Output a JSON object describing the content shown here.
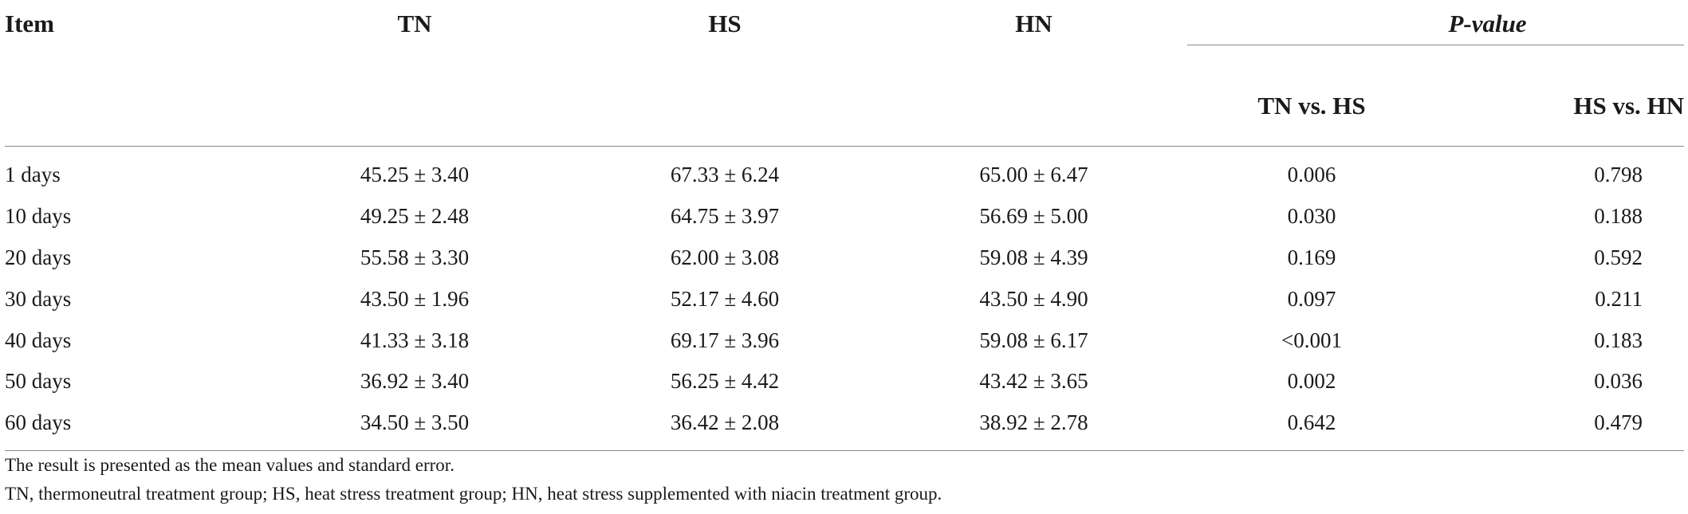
{
  "header": {
    "item": "Item",
    "tn": "TN",
    "hs": "HS",
    "hn": "HN",
    "pvalue": "P-value",
    "tn_vs_hs": "TN vs. HS",
    "hs_vs_hn": "HS vs. HN"
  },
  "rows": [
    {
      "item": "1 days",
      "tn": "45.25 ± 3.40",
      "hs": "67.33 ± 6.24",
      "hn": "65.00 ± 6.47",
      "tn_vs_hs": "0.006",
      "hs_vs_hn": "0.798"
    },
    {
      "item": "10 days",
      "tn": "49.25 ± 2.48",
      "hs": "64.75 ± 3.97",
      "hn": "56.69 ± 5.00",
      "tn_vs_hs": "0.030",
      "hs_vs_hn": "0.188"
    },
    {
      "item": "20 days",
      "tn": "55.58 ± 3.30",
      "hs": "62.00 ± 3.08",
      "hn": "59.08 ± 4.39",
      "tn_vs_hs": "0.169",
      "hs_vs_hn": "0.592"
    },
    {
      "item": "30 days",
      "tn": "43.50 ± 1.96",
      "hs": "52.17 ± 4.60",
      "hn": "43.50 ± 4.90",
      "tn_vs_hs": "0.097",
      "hs_vs_hn": "0.211"
    },
    {
      "item": "40 days",
      "tn": "41.33 ± 3.18",
      "hs": "69.17 ± 3.96",
      "hn": "59.08 ± 6.17",
      "tn_vs_hs": "<0.001",
      "hs_vs_hn": "0.183"
    },
    {
      "item": "50 days",
      "tn": "36.92 ± 3.40",
      "hs": "56.25 ± 4.42",
      "hn": "43.42 ± 3.65",
      "tn_vs_hs": "0.002",
      "hs_vs_hn": "0.036"
    },
    {
      "item": "60 days",
      "tn": "34.50 ± 3.50",
      "hs": "36.42 ± 2.08",
      "hn": "38.92 ± 2.78",
      "tn_vs_hs": "0.642",
      "hs_vs_hn": "0.479"
    }
  ],
  "notes": [
    "The result is presented as the mean values and standard error.",
    "TN, thermoneutral treatment group; HS, heat stress treatment group; HN, heat stress supplemented with niacin treatment group."
  ]
}
